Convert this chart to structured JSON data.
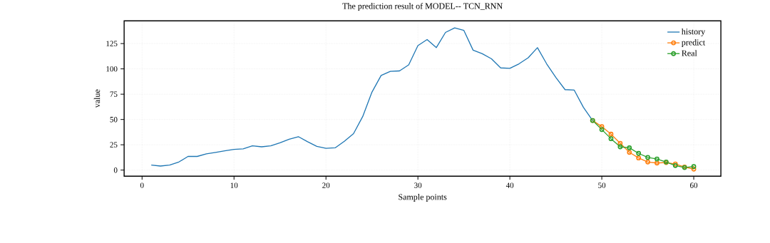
{
  "chart_data": {
    "type": "line",
    "title": "The prediction result of MODEL-- TCN_RNN",
    "xlabel": "Sample points",
    "ylabel": "value",
    "xlim": [
      -1.95,
      62.95
    ],
    "ylim": [
      -6,
      147.5
    ],
    "xticks": [
      0,
      10,
      20,
      30,
      40,
      50,
      60
    ],
    "yticks": [
      0,
      25,
      50,
      75,
      100,
      125
    ],
    "grid": true,
    "legend": "top right",
    "series": [
      {
        "name": "history",
        "color": "#1f77b4",
        "marker": "none",
        "x": [
          1,
          2,
          3,
          4,
          5,
          6,
          7,
          8,
          9,
          10,
          11,
          12,
          13,
          14,
          15,
          16,
          17,
          18,
          19,
          20,
          21,
          22,
          23,
          24,
          25,
          26,
          27,
          28,
          29,
          30,
          31,
          32,
          33,
          34,
          35,
          36,
          37,
          38,
          39,
          40,
          41,
          42,
          43,
          44,
          45,
          46,
          47,
          48,
          49
        ],
        "values": [
          5,
          4,
          5,
          8,
          13.5,
          13.5,
          16,
          17.5,
          19,
          20.5,
          21,
          24,
          23,
          24,
          27,
          30.5,
          33,
          28,
          23.5,
          21.5,
          22,
          28.5,
          36,
          53,
          77,
          93.5,
          97.5,
          98,
          104,
          123,
          129,
          121,
          136,
          140.5,
          138,
          118.5,
          115,
          110,
          101,
          100.5,
          105,
          111,
          121,
          105,
          91.5,
          79.5,
          79,
          62,
          49
        ]
      },
      {
        "name": "predict",
        "color": "#ff7f0e",
        "marker": "circle",
        "x": [
          49,
          50,
          51,
          52,
          53,
          54,
          55,
          56,
          57,
          58,
          59,
          60
        ],
        "values": [
          49,
          43,
          35.5,
          26.5,
          17.5,
          12,
          8,
          7,
          7.5,
          6,
          3,
          1
        ]
      },
      {
        "name": "Real",
        "color": "#2ca02c",
        "marker": "circle",
        "x": [
          49,
          50,
          51,
          52,
          53,
          54,
          55,
          56,
          57,
          58,
          59,
          60
        ],
        "values": [
          49,
          40,
          31,
          23,
          22,
          16.5,
          12.5,
          11,
          8,
          4.5,
          2.5,
          3.5
        ]
      }
    ]
  }
}
